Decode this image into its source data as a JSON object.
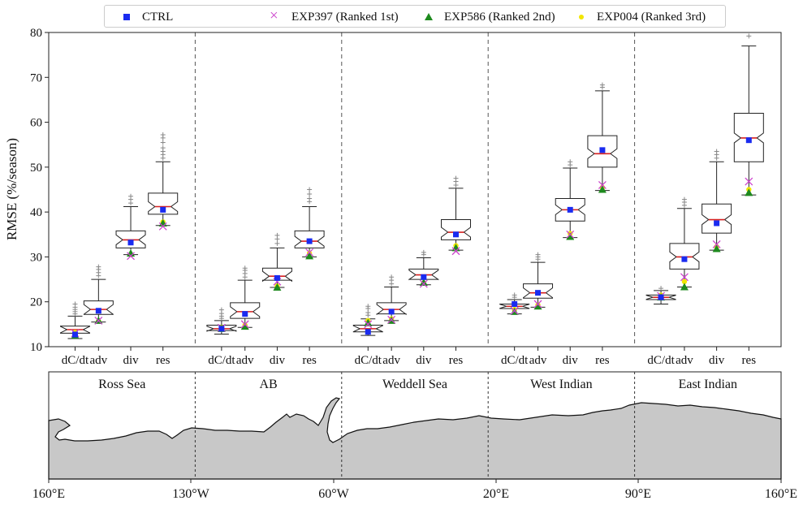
{
  "legend": {
    "ctrl": "CTRL",
    "exp397": "EXP397 (Ranked 1st)",
    "exp586": "EXP586 (Ranked 2nd)",
    "exp004": "EXP004 (Ranked 3rd)"
  },
  "map": {
    "regions": [
      "Ross Sea",
      "AB",
      "Weddell Sea",
      "West Indian",
      "East Indian"
    ],
    "lon_ticks": [
      "160°E",
      "130°W",
      "60°W",
      "20°E",
      "90°E",
      "160°E"
    ],
    "land_color": "#c8c8c8"
  },
  "chart_data": {
    "type": "box",
    "ylabel": "RMSE (%/season)",
    "ylim": [
      10,
      80
    ],
    "yticks": [
      10,
      20,
      30,
      40,
      50,
      60,
      70,
      80
    ],
    "categories": [
      "dC/dt",
      "adv",
      "div",
      "res"
    ],
    "regions": [
      "Ross Sea",
      "AB",
      "Weddell Sea",
      "West Indian",
      "East Indian"
    ],
    "colors": {
      "ctrl": "#1a2bf0",
      "exp397": "#cc44cc",
      "exp586": "#1e8a1e",
      "exp004": "#f2e600",
      "median": "#d62020"
    },
    "boxes": [
      {
        "region": "Ross Sea",
        "category": "dC/dt",
        "whislo": 11.8,
        "q1": 13.0,
        "med": 13.8,
        "q3": 14.6,
        "whishi": 16.8,
        "fliers": [
          17.3,
          17.8,
          18.3,
          18.8,
          19.5
        ],
        "ctrl": 12.7,
        "exp397": 13.0,
        "exp586": 12.5,
        "exp004": 13.2
      },
      {
        "region": "Ross Sea",
        "category": "adv",
        "whislo": 15.5,
        "q1": 17.2,
        "med": 18.3,
        "q3": 20.2,
        "whishi": 25.0,
        "fliers": [
          25.8,
          26.5,
          27.2,
          27.8
        ],
        "ctrl": 18.0,
        "exp397": 15.8,
        "exp586": 15.8,
        "exp004": 15.7
      },
      {
        "region": "Ross Sea",
        "category": "div",
        "whislo": 30.5,
        "q1": 32.0,
        "med": 33.8,
        "q3": 35.8,
        "whishi": 41.2,
        "fliers": [
          42.0,
          42.8,
          43.5
        ],
        "ctrl": 33.2,
        "exp397": 30.2,
        "exp586": 30.8,
        "exp004": 30.5
      },
      {
        "region": "Ross Sea",
        "category": "res",
        "whislo": 37.0,
        "q1": 39.5,
        "med": 41.2,
        "q3": 44.2,
        "whishi": 51.2,
        "fliers": [
          52.0,
          52.8,
          53.5,
          54.3,
          55.5,
          56.5,
          57.2
        ],
        "ctrl": 40.5,
        "exp397": 36.8,
        "exp586": 37.5,
        "exp004": 37.8
      },
      {
        "region": "AB",
        "category": "dC/dt",
        "whislo": 12.8,
        "q1": 13.6,
        "med": 14.0,
        "q3": 14.8,
        "whishi": 15.8,
        "fliers": [
          16.3,
          16.8,
          17.4,
          18.2
        ],
        "ctrl": 14.0,
        "exp397": 14.2,
        "exp586": 14.0,
        "exp004": 14.3
      },
      {
        "region": "AB",
        "category": "adv",
        "whislo": 14.3,
        "q1": 16.3,
        "med": 17.8,
        "q3": 19.8,
        "whishi": 24.8,
        "fliers": [
          25.5,
          26.3,
          27.0,
          27.5
        ],
        "ctrl": 17.3,
        "exp397": 15.0,
        "exp586": 14.5,
        "exp004": 14.8
      },
      {
        "region": "AB",
        "category": "div",
        "whislo": 23.2,
        "q1": 24.8,
        "med": 25.7,
        "q3": 27.5,
        "whishi": 32.0,
        "fliers": [
          33.0,
          34.0,
          34.8
        ],
        "ctrl": 25.3,
        "exp397": 24.5,
        "exp586": 23.2,
        "exp004": 23.5
      },
      {
        "region": "AB",
        "category": "res",
        "whislo": 30.0,
        "q1": 32.0,
        "med": 33.5,
        "q3": 35.8,
        "whishi": 41.2,
        "fliers": [
          42.3,
          43.0,
          44.0,
          45.0
        ],
        "ctrl": 33.5,
        "exp397": 31.0,
        "exp586": 30.2,
        "exp004": 30.8
      },
      {
        "region": "Weddell Sea",
        "category": "dC/dt",
        "whislo": 12.5,
        "q1": 13.3,
        "med": 14.0,
        "q3": 14.8,
        "whishi": 16.2,
        "fliers": [
          17.0,
          17.6,
          18.5,
          19.0
        ],
        "ctrl": 13.3,
        "exp397": 15.0,
        "exp586": 15.3,
        "exp004": 15.8
      },
      {
        "region": "Weddell Sea",
        "category": "adv",
        "whislo": 15.8,
        "q1": 17.3,
        "med": 18.3,
        "q3": 19.8,
        "whishi": 23.3,
        "fliers": [
          24.0,
          24.8,
          25.5
        ],
        "ctrl": 17.8,
        "exp397": 16.0,
        "exp586": 15.8,
        "exp004": 16.2
      },
      {
        "region": "Weddell Sea",
        "category": "div",
        "whislo": 23.8,
        "q1": 25.0,
        "med": 26.0,
        "q3": 27.3,
        "whishi": 29.8,
        "fliers": [
          30.5,
          31.0
        ],
        "ctrl": 25.5,
        "exp397": 24.0,
        "exp586": 24.3,
        "exp004": 24.2
      },
      {
        "region": "Weddell Sea",
        "category": "res",
        "whislo": 31.5,
        "q1": 33.8,
        "med": 35.5,
        "q3": 38.3,
        "whishi": 45.3,
        "fliers": [
          46.0,
          46.8,
          47.5
        ],
        "ctrl": 35.0,
        "exp397": 31.3,
        "exp586": 32.0,
        "exp004": 32.5
      },
      {
        "region": "West Indian",
        "category": "dC/dt",
        "whislo": 17.3,
        "q1": 18.5,
        "med": 19.0,
        "q3": 19.5,
        "whishi": 20.5,
        "fliers": [
          21.0,
          21.5
        ],
        "ctrl": 19.5,
        "exp397": 18.0,
        "exp586": 17.8,
        "exp004": 18.3
      },
      {
        "region": "West Indian",
        "category": "adv",
        "whislo": 18.8,
        "q1": 20.8,
        "med": 22.0,
        "q3": 24.0,
        "whishi": 28.8,
        "fliers": [
          29.5,
          30.0,
          30.5
        ],
        "ctrl": 22.0,
        "exp397": 19.5,
        "exp586": 19.0,
        "exp004": 19.3
      },
      {
        "region": "West Indian",
        "category": "div",
        "whislo": 34.3,
        "q1": 38.0,
        "med": 40.5,
        "q3": 43.0,
        "whishi": 49.8,
        "fliers": [
          50.5,
          51.2
        ],
        "ctrl": 40.5,
        "exp397": 35.0,
        "exp586": 34.5,
        "exp004": 35.2
      },
      {
        "region": "West Indian",
        "category": "res",
        "whislo": 44.8,
        "q1": 50.0,
        "med": 53.0,
        "q3": 57.0,
        "whishi": 67.0,
        "fliers": [
          67.8,
          68.3
        ],
        "ctrl": 53.8,
        "exp397": 46.0,
        "exp586": 45.0,
        "exp004": 45.5
      },
      {
        "region": "East Indian",
        "category": "dC/dt",
        "whislo": 19.5,
        "q1": 20.5,
        "med": 21.0,
        "q3": 21.5,
        "whishi": 22.5,
        "fliers": [
          23.0
        ],
        "ctrl": 21.0,
        "exp397": 21.3,
        "exp586": 21.0,
        "exp004": 21.5
      },
      {
        "region": "East Indian",
        "category": "adv",
        "whislo": 23.3,
        "q1": 27.3,
        "med": 30.0,
        "q3": 33.0,
        "whishi": 40.8,
        "fliers": [
          41.5,
          42.2,
          42.8
        ],
        "ctrl": 29.5,
        "exp397": 25.5,
        "exp586": 23.3,
        "exp004": 24.5
      },
      {
        "region": "East Indian",
        "category": "div",
        "whislo": 31.5,
        "q1": 35.3,
        "med": 38.3,
        "q3": 41.8,
        "whishi": 51.2,
        "fliers": [
          52.0,
          52.8,
          53.5
        ],
        "ctrl": 37.5,
        "exp397": 32.8,
        "exp586": 31.8,
        "exp004": 32.3
      },
      {
        "region": "East Indian",
        "category": "res",
        "whislo": 43.8,
        "q1": 51.2,
        "med": 56.5,
        "q3": 62.0,
        "whishi": 77.0,
        "fliers": [
          79.2
        ],
        "ctrl": 56.0,
        "exp397": 46.8,
        "exp586": 44.3,
        "exp004": 45.0
      }
    ]
  }
}
